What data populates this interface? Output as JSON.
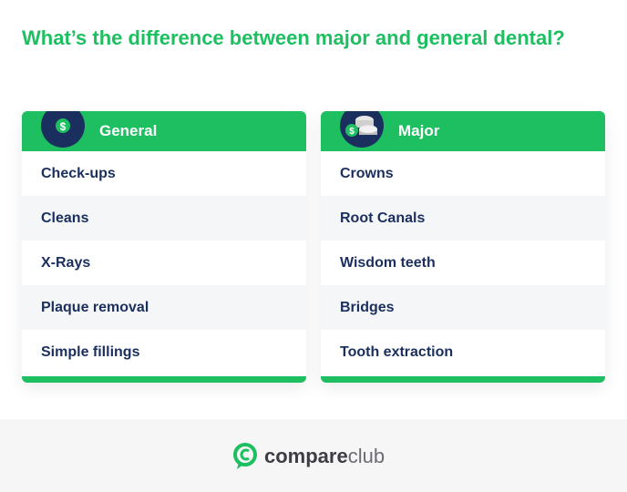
{
  "title": "What’s the difference between major and general dental?",
  "columns": [
    {
      "label": "General",
      "icon": "dollar-coin-icon",
      "items": [
        "Check-ups",
        "Cleans",
        "X-Rays",
        "Plaque removal",
        "Simple fillings"
      ]
    },
    {
      "label": "Major",
      "icon": "coin-stack-icon",
      "items": [
        "Crowns",
        "Root Canals",
        "Wisdom teeth",
        "Bridges",
        "Tooth extraction"
      ]
    }
  ],
  "logo": {
    "part1": "compare",
    "part2": "club"
  },
  "colors": {
    "green": "#1dbf61",
    "navy": "#1b2f5e"
  }
}
